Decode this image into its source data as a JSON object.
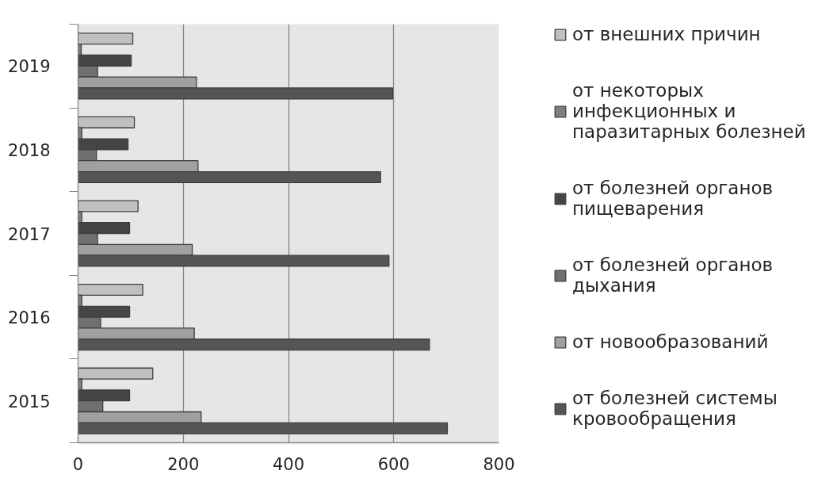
{
  "chart_data": {
    "type": "bar",
    "orientation": "horizontal",
    "categories": [
      "2019",
      "2018",
      "2017",
      "2016",
      "2015"
    ],
    "series": [
      {
        "name": "от внешних причин",
        "color": "#c0c0c0",
        "values": [
          104,
          107,
          114,
          123,
          142
        ]
      },
      {
        "name": "от некоторых инфекционных и паразитарных болезней",
        "color": "#7f7f7f",
        "values": [
          6,
          7,
          7,
          7,
          7
        ]
      },
      {
        "name": "от болезней органов пищеварения",
        "color": "#454545",
        "values": [
          101,
          95,
          98,
          98,
          98
        ]
      },
      {
        "name": "от болезней органов дыхания",
        "color": "#707070",
        "values": [
          37,
          35,
          37,
          43,
          47
        ]
      },
      {
        "name": "от новообразований",
        "color": "#a0a0a0",
        "values": [
          225,
          228,
          217,
          221,
          234
        ]
      },
      {
        "name": "от болезней системы кровообращения",
        "color": "#555555",
        "values": [
          598,
          575,
          591,
          668,
          702
        ]
      }
    ],
    "xlim": [
      0,
      800
    ],
    "xticks": [
      0,
      200,
      400,
      600,
      800
    ],
    "grid": "x",
    "legend": "right"
  }
}
